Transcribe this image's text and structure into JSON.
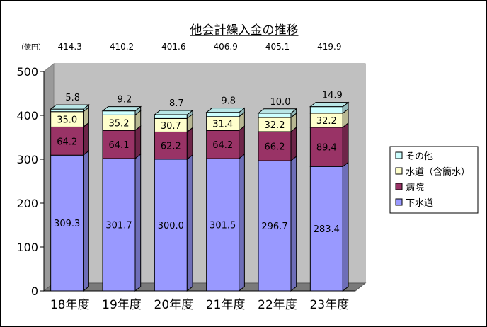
{
  "chart_data": {
    "type": "bar",
    "stacked": true,
    "title": "他会計繰入金の推移",
    "ylabel": "（億円）",
    "ylim": [
      0,
      500
    ],
    "yticks": [
      0,
      100,
      200,
      300,
      400,
      500
    ],
    "grid": false,
    "legend_position": "right",
    "categories": [
      "18年度",
      "19年度",
      "20年度",
      "21年度",
      "22年度",
      "23年度"
    ],
    "totals": [
      "414.3",
      "410.2",
      "401.6",
      "406.9",
      "405.1",
      "419.9"
    ],
    "series": [
      {
        "name": "下水道",
        "color": "#9999ff",
        "values": [
          309.3,
          301.7,
          300.0,
          301.5,
          296.7,
          283.4
        ]
      },
      {
        "name": "病院",
        "color": "#993366",
        "values": [
          64.2,
          64.1,
          62.2,
          64.2,
          66.2,
          89.4
        ]
      },
      {
        "name": "水道（含簡水）",
        "color": "#ffffcc",
        "values": [
          35.0,
          35.2,
          30.7,
          31.4,
          32.2,
          32.2
        ]
      },
      {
        "name": "その他",
        "color": "#ccffff",
        "values": [
          5.8,
          9.2,
          8.7,
          9.8,
          10.0,
          14.9
        ]
      }
    ],
    "legend_order": [
      "その他",
      "水道（含簡水）",
      "病院",
      "下水道"
    ]
  }
}
